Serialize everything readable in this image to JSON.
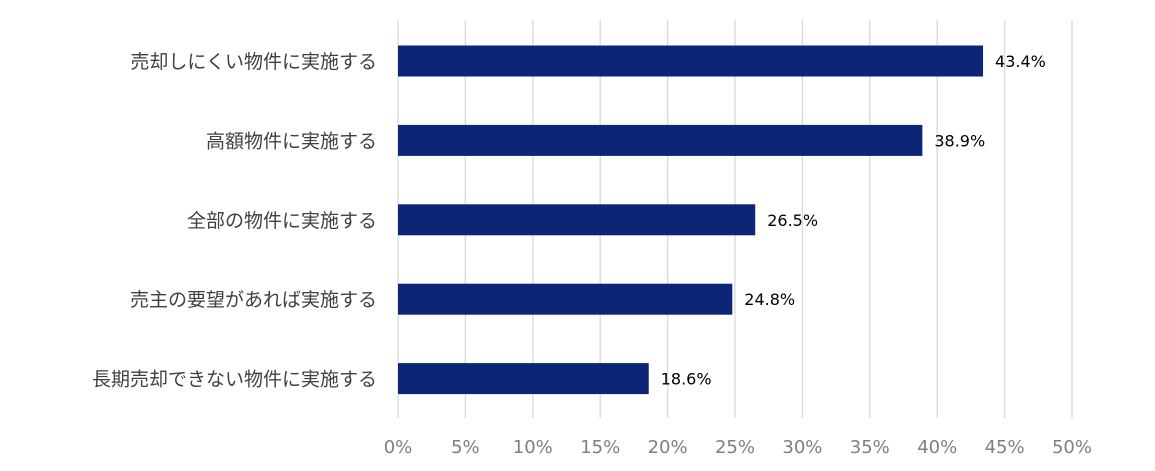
{
  "chart_data": {
    "type": "bar",
    "orientation": "horizontal",
    "title": "",
    "xlabel": "",
    "ylabel": "",
    "categories": [
      "売却しにくい物件に実施する",
      "高額物件に実施する",
      "全部の物件に実施する",
      "売主の要望があれば実施する",
      "長期売却できない物件に実施する"
    ],
    "values": [
      43.4,
      38.9,
      26.5,
      24.8,
      18.6
    ],
    "value_labels": [
      "43.4%",
      "38.9%",
      "26.5%",
      "24.8%",
      "18.6%"
    ],
    "xlim": [
      0,
      50
    ],
    "x_ticks": [
      0,
      5,
      10,
      15,
      20,
      25,
      30,
      35,
      40,
      45,
      50
    ],
    "x_tick_labels": [
      "0%",
      "5%",
      "10%",
      "15%",
      "20%",
      "25%",
      "30%",
      "35%",
      "40%",
      "45%",
      "50%"
    ],
    "grid": "vertical",
    "legend": "none",
    "bar_color": "#0d2577",
    "grid_color": "#d9d9d9"
  }
}
